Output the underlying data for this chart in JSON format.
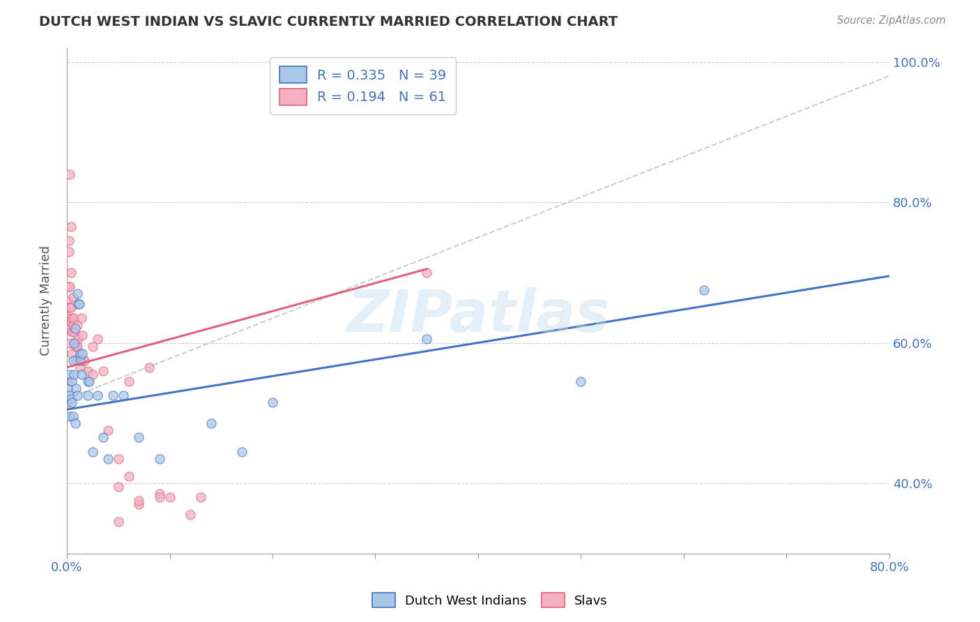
{
  "title": "DUTCH WEST INDIAN VS SLAVIC CURRENTLY MARRIED CORRELATION CHART",
  "source_text": "Source: ZipAtlas.com",
  "ylabel": "Currently Married",
  "xlim": [
    0.0,
    0.8
  ],
  "ylim": [
    0.3,
    1.02
  ],
  "ytick_positions": [
    0.4,
    0.6,
    0.8,
    1.0
  ],
  "ytick_labels": [
    "40.0%",
    "60.0%",
    "80.0%",
    "100.0%"
  ],
  "xtick_positions": [
    0.0,
    0.1,
    0.2,
    0.3,
    0.4,
    0.5,
    0.6,
    0.7,
    0.8
  ],
  "xtick_labels": [
    "0.0%",
    "",
    "",
    "",
    "",
    "",
    "",
    "",
    "80.0%"
  ],
  "R_blue": 0.335,
  "N_blue": 39,
  "R_pink": 0.194,
  "N_pink": 61,
  "color_blue_fill": "#a8c8e8",
  "color_pink_fill": "#f4b0c0",
  "color_blue_line": "#4472c4",
  "color_pink_line": "#e06080",
  "color_diag_line": "#cccccc",
  "blue_line_x": [
    0.0,
    0.8
  ],
  "blue_line_y": [
    0.505,
    0.695
  ],
  "pink_line_x": [
    0.0,
    0.35
  ],
  "pink_line_y": [
    0.565,
    0.705
  ],
  "diag_line_x": [
    0.0,
    0.8
  ],
  "diag_line_y": [
    0.52,
    0.98
  ],
  "blue_scatter": [
    [
      0.001,
      0.535
    ],
    [
      0.002,
      0.525
    ],
    [
      0.003,
      0.555
    ],
    [
      0.003,
      0.495
    ],
    [
      0.004,
      0.52
    ],
    [
      0.005,
      0.515
    ],
    [
      0.005,
      0.545
    ],
    [
      0.006,
      0.575
    ],
    [
      0.006,
      0.495
    ],
    [
      0.007,
      0.555
    ],
    [
      0.007,
      0.6
    ],
    [
      0.008,
      0.62
    ],
    [
      0.008,
      0.485
    ],
    [
      0.009,
      0.535
    ],
    [
      0.01,
      0.67
    ],
    [
      0.01,
      0.525
    ],
    [
      0.011,
      0.655
    ],
    [
      0.012,
      0.655
    ],
    [
      0.013,
      0.585
    ],
    [
      0.013,
      0.575
    ],
    [
      0.014,
      0.555
    ],
    [
      0.015,
      0.585
    ],
    [
      0.02,
      0.545
    ],
    [
      0.02,
      0.525
    ],
    [
      0.022,
      0.545
    ],
    [
      0.025,
      0.445
    ],
    [
      0.03,
      0.525
    ],
    [
      0.035,
      0.465
    ],
    [
      0.04,
      0.435
    ],
    [
      0.045,
      0.525
    ],
    [
      0.055,
      0.525
    ],
    [
      0.07,
      0.465
    ],
    [
      0.09,
      0.435
    ],
    [
      0.14,
      0.485
    ],
    [
      0.17,
      0.445
    ],
    [
      0.2,
      0.515
    ],
    [
      0.35,
      0.605
    ],
    [
      0.5,
      0.545
    ],
    [
      0.62,
      0.675
    ]
  ],
  "pink_scatter": [
    [
      0.001,
      0.545
    ],
    [
      0.001,
      0.515
    ],
    [
      0.001,
      0.66
    ],
    [
      0.001,
      0.635
    ],
    [
      0.001,
      0.625
    ],
    [
      0.002,
      0.625
    ],
    [
      0.002,
      0.68
    ],
    [
      0.002,
      0.73
    ],
    [
      0.002,
      0.65
    ],
    [
      0.002,
      0.63
    ],
    [
      0.003,
      0.65
    ],
    [
      0.003,
      0.63
    ],
    [
      0.003,
      0.68
    ],
    [
      0.003,
      0.62
    ],
    [
      0.003,
      0.6
    ],
    [
      0.004,
      0.7
    ],
    [
      0.004,
      0.65
    ],
    [
      0.004,
      0.63
    ],
    [
      0.005,
      0.635
    ],
    [
      0.005,
      0.615
    ],
    [
      0.005,
      0.585
    ],
    [
      0.006,
      0.665
    ],
    [
      0.006,
      0.625
    ],
    [
      0.007,
      0.635
    ],
    [
      0.007,
      0.615
    ],
    [
      0.008,
      0.6
    ],
    [
      0.008,
      0.575
    ],
    [
      0.009,
      0.595
    ],
    [
      0.01,
      0.625
    ],
    [
      0.01,
      0.595
    ],
    [
      0.01,
      0.575
    ],
    [
      0.011,
      0.605
    ],
    [
      0.012,
      0.58
    ],
    [
      0.013,
      0.565
    ],
    [
      0.014,
      0.635
    ],
    [
      0.015,
      0.61
    ],
    [
      0.016,
      0.575
    ],
    [
      0.017,
      0.575
    ],
    [
      0.02,
      0.56
    ],
    [
      0.025,
      0.595
    ],
    [
      0.025,
      0.555
    ],
    [
      0.03,
      0.605
    ],
    [
      0.035,
      0.56
    ],
    [
      0.04,
      0.475
    ],
    [
      0.05,
      0.395
    ],
    [
      0.05,
      0.435
    ],
    [
      0.06,
      0.545
    ],
    [
      0.06,
      0.41
    ],
    [
      0.07,
      0.37
    ],
    [
      0.07,
      0.375
    ],
    [
      0.08,
      0.565
    ],
    [
      0.09,
      0.385
    ],
    [
      0.09,
      0.38
    ],
    [
      0.1,
      0.38
    ],
    [
      0.12,
      0.355
    ],
    [
      0.13,
      0.38
    ],
    [
      0.003,
      0.84
    ],
    [
      0.004,
      0.765
    ],
    [
      0.002,
      0.745
    ],
    [
      0.35,
      0.7
    ],
    [
      0.05,
      0.345
    ]
  ],
  "watermark": "ZIPatlas",
  "legend_label_blue": "R = 0.335   N = 39",
  "legend_label_pink": "R = 0.194   N = 61",
  "bottom_legend_labels": [
    "Dutch West Indians",
    "Slavs"
  ]
}
